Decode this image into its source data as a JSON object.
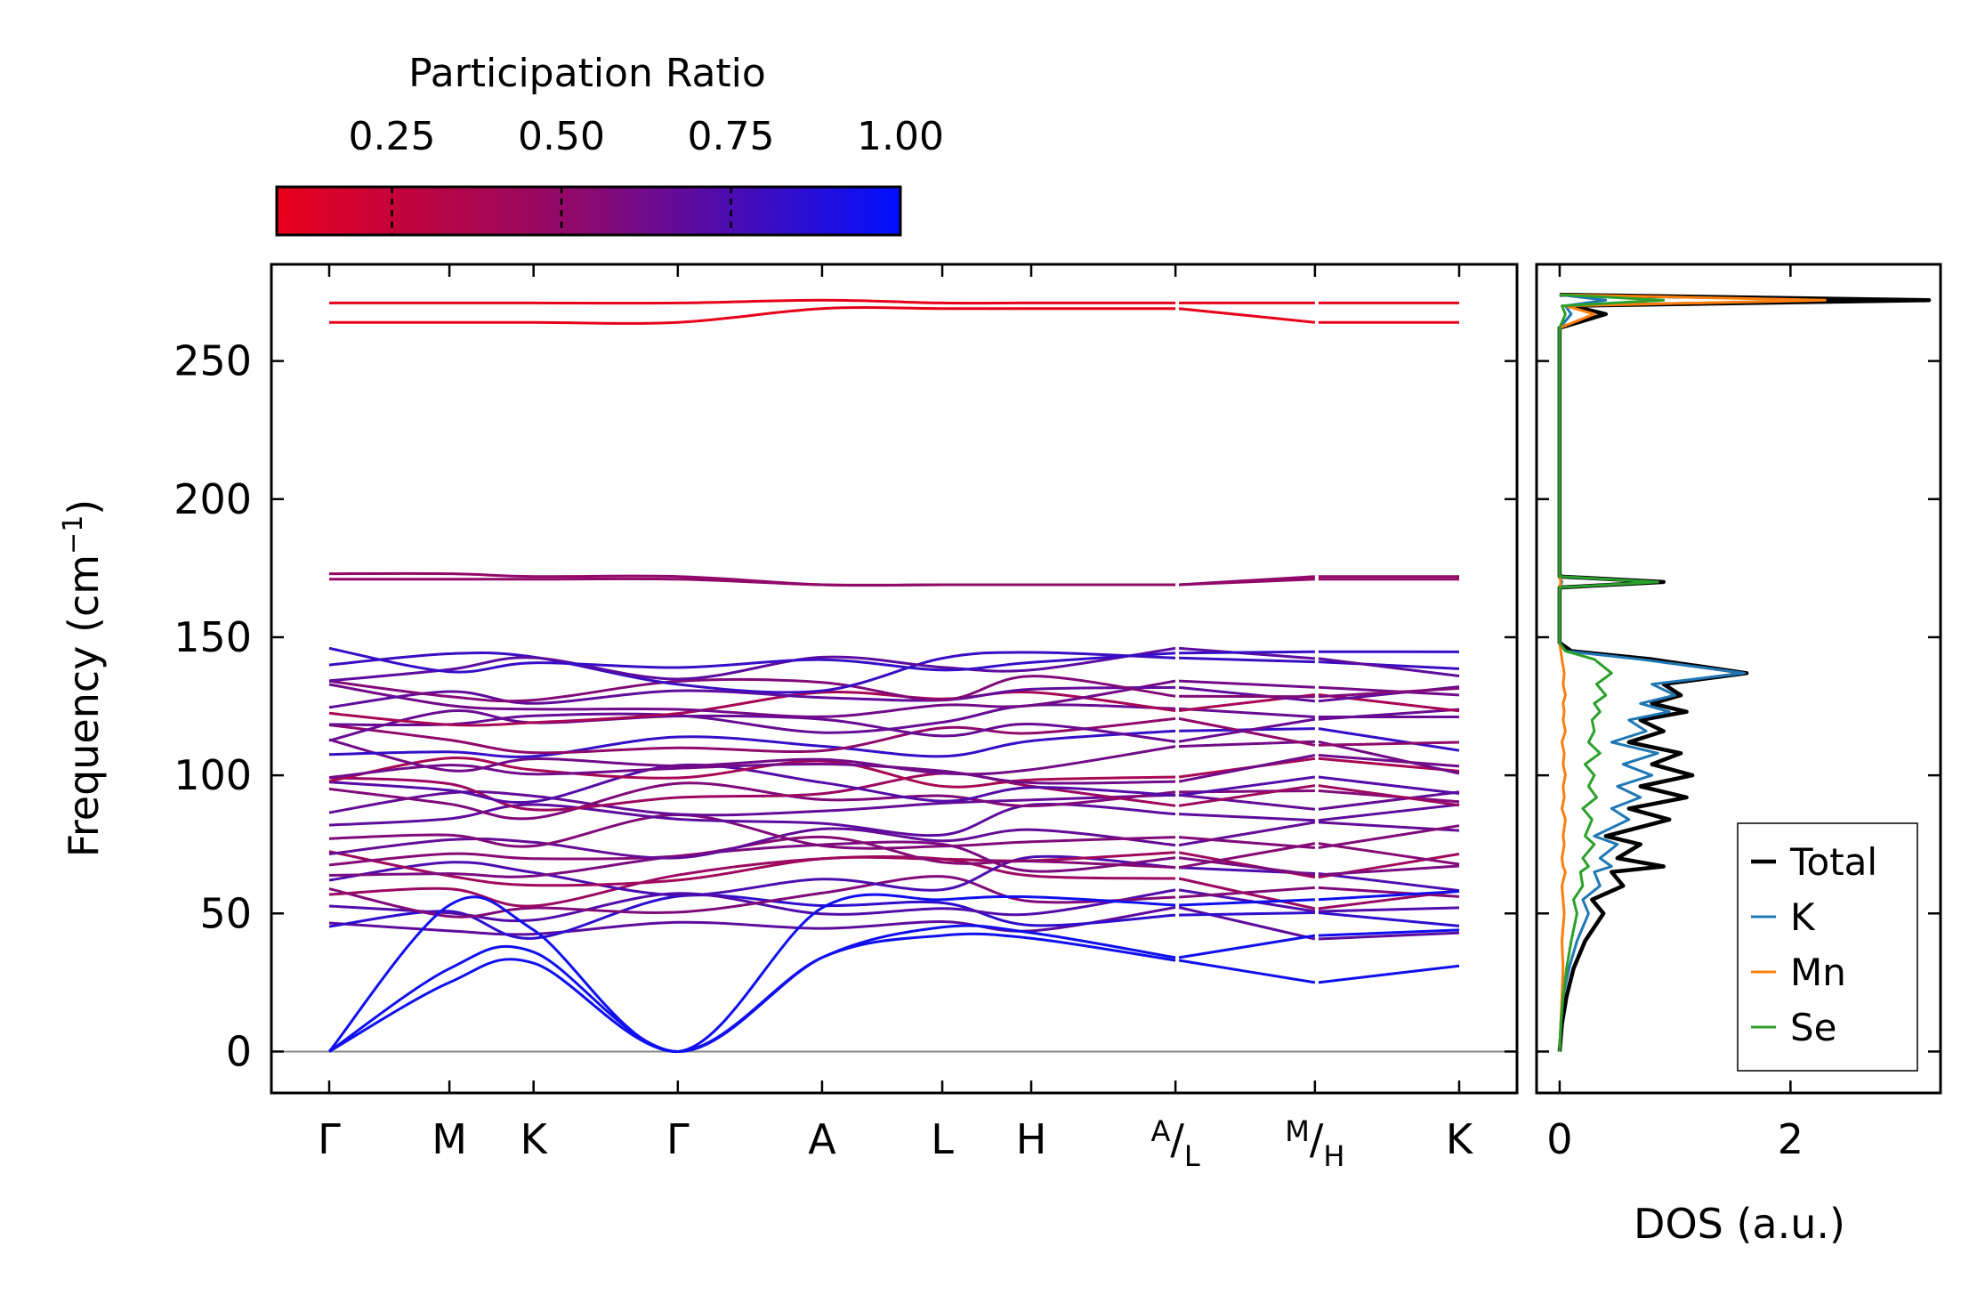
{
  "chart_data": [
    {
      "type": "line",
      "name": "phonon-band-structure",
      "ylabel": "Frequency (cm",
      "ylabel_sup": "−1",
      "ylabel_close": ")",
      "ylim": [
        -15,
        285
      ],
      "yticks": [
        0,
        50,
        100,
        150,
        200,
        250
      ],
      "ytick_labels": [
        "0",
        "50",
        "100",
        "150",
        "200",
        "250"
      ],
      "path": {
        "points": [
          "Γ",
          "M",
          "K",
          "Γ",
          "A",
          "L",
          "H",
          "A|L",
          "M|H",
          "K"
        ],
        "labels": [
          {
            "main": "Γ"
          },
          {
            "main": "M"
          },
          {
            "main": "K"
          },
          {
            "main": "Γ"
          },
          {
            "main": "A"
          },
          {
            "main": "L"
          },
          {
            "main": "H"
          },
          {
            "sup": "A",
            "slash": "/",
            "sub": "L"
          },
          {
            "sup": "M",
            "slash": "/",
            "sub": "H"
          },
          {
            "main": "K"
          }
        ],
        "positions": [
          0.0,
          0.5,
          0.85,
          1.45,
          2.05,
          2.55,
          2.92,
          3.52,
          4.1,
          4.7
        ],
        "breaks": [
          3.52,
          4.1
        ]
      },
      "flat_bands": [
        {
          "values": [
            271,
            271,
            271,
            271,
            272,
            271,
            271,
            271,
            271,
            271
          ],
          "pr": 0.05
        },
        {
          "values": [
            264,
            264,
            264,
            264,
            269,
            269,
            269,
            269,
            264,
            264
          ],
          "pr": 0.05
        },
        {
          "values": [
            173,
            173,
            172,
            172,
            169,
            169,
            169,
            169,
            172,
            172
          ],
          "pr": 0.5
        },
        {
          "values": [
            171,
            171,
            171,
            171,
            169,
            169,
            169,
            169,
            171,
            171
          ],
          "pr": 0.5
        }
      ],
      "acoustic_bands": [
        {
          "values": [
            0,
            53,
            44,
            0,
            52,
            55,
            56,
            53,
            55,
            58
          ],
          "pr": 0.95
        },
        {
          "values": [
            0,
            30,
            36,
            0,
            34,
            45,
            43,
            34,
            42,
            44
          ],
          "pr": 0.95
        },
        {
          "values": [
            0,
            25,
            32,
            0,
            34,
            42,
            41,
            33,
            25,
            31
          ],
          "pr": 0.95
        }
      ],
      "optical_region": {
        "min": 45,
        "max": 146,
        "count": 30
      },
      "zero_line": 0,
      "colorbar": {
        "title": "Participation Ratio",
        "ticks": [
          0.25,
          0.5,
          0.75,
          1.0
        ],
        "tick_labels": [
          "0.25",
          "0.50",
          "0.75",
          "1.00"
        ],
        "range": [
          0.08,
          1.0
        ],
        "color_low": "#e8001a",
        "color_mid": "#8a0a70",
        "color_high": "#0010ff"
      }
    },
    {
      "type": "line",
      "name": "phonon-dos",
      "xlabel": "DOS (a.u.)",
      "xlim": [
        -0.2,
        3.3
      ],
      "xticks": [
        0,
        2
      ],
      "xtick_labels": [
        "0",
        "2"
      ],
      "ylim": [
        -15,
        285
      ],
      "legend": {
        "position": "bottom-right",
        "entries": [
          "Total",
          "K",
          "Mn",
          "Se"
        ]
      },
      "series": [
        {
          "name": "Total",
          "color": "#000000",
          "x": [
            0,
            0.02,
            0.06,
            0.12,
            0.22,
            0.38,
            0.28,
            0.55,
            0.45,
            0.9,
            0.5,
            0.7,
            0.4,
            0.95,
            0.6,
            1.1,
            0.7,
            1.15,
            0.8,
            1.05,
            0.6,
            0.9,
            0.7,
            1.1,
            0.8,
            1.05,
            0.9,
            1.62,
            0.8,
            0.1,
            0,
            0,
            0.9,
            0,
            0,
            0,
            0.4,
            0.1,
            3.2,
            0
          ],
          "y": [
            0,
            10,
            20,
            30,
            40,
            50,
            55,
            60,
            65,
            67,
            70,
            75,
            78,
            84,
            88,
            92,
            96,
            100,
            104,
            108,
            112,
            116,
            120,
            123,
            126,
            129,
            133,
            137,
            142,
            145,
            148,
            168,
            170,
            172,
            175,
            262,
            267,
            270,
            272,
            274
          ]
        },
        {
          "name": "K",
          "color": "#1f77b4",
          "x": [
            0,
            0.01,
            0.03,
            0.08,
            0.15,
            0.25,
            0.2,
            0.35,
            0.3,
            0.45,
            0.35,
            0.5,
            0.3,
            0.6,
            0.45,
            0.7,
            0.5,
            0.8,
            0.55,
            0.85,
            0.45,
            0.75,
            0.6,
            0.95,
            0.7,
            1.0,
            0.8,
            1.6,
            0.7,
            0.05,
            0,
            0,
            0.02,
            0,
            0,
            0,
            0.1,
            0.05,
            0.4,
            0
          ],
          "y": [
            0,
            10,
            20,
            30,
            40,
            50,
            55,
            60,
            65,
            67,
            70,
            75,
            78,
            84,
            88,
            92,
            96,
            100,
            104,
            108,
            112,
            116,
            120,
            123,
            126,
            129,
            133,
            137,
            142,
            145,
            148,
            168,
            170,
            172,
            175,
            262,
            267,
            270,
            272,
            274
          ]
        },
        {
          "name": "Mn",
          "color": "#ff7f0e",
          "x": [
            0,
            0.01,
            0.02,
            0.03,
            0.02,
            0.04,
            0.03,
            0.02,
            0.05,
            0.03,
            0.02,
            0.04,
            0.03,
            0.05,
            0.02,
            0.04,
            0.03,
            0.05,
            0.03,
            0.04,
            0.02,
            0.05,
            0.03,
            0.04,
            0.03,
            0.05,
            0.03,
            0.04,
            0.02,
            0.01,
            0,
            0,
            0.01,
            0,
            0,
            0,
            0.3,
            0.05,
            2.3,
            0
          ],
          "y": [
            0,
            10,
            20,
            30,
            40,
            50,
            55,
            60,
            65,
            67,
            70,
            75,
            78,
            84,
            88,
            92,
            96,
            100,
            104,
            108,
            112,
            116,
            120,
            123,
            126,
            129,
            133,
            137,
            142,
            145,
            148,
            168,
            170,
            172,
            175,
            262,
            267,
            270,
            272,
            274
          ]
        },
        {
          "name": "Se",
          "color": "#2ca02c",
          "x": [
            0,
            0.01,
            0.03,
            0.06,
            0.1,
            0.15,
            0.12,
            0.2,
            0.18,
            0.25,
            0.2,
            0.3,
            0.22,
            0.28,
            0.2,
            0.32,
            0.25,
            0.3,
            0.22,
            0.35,
            0.25,
            0.3,
            0.28,
            0.35,
            0.3,
            0.4,
            0.32,
            0.45,
            0.3,
            0.05,
            0,
            0,
            0.85,
            0,
            0,
            0,
            0.05,
            0.02,
            0.9,
            0
          ],
          "y": [
            0,
            10,
            20,
            30,
            40,
            50,
            55,
            60,
            65,
            67,
            70,
            75,
            78,
            84,
            88,
            92,
            96,
            100,
            104,
            108,
            112,
            116,
            120,
            123,
            126,
            129,
            133,
            137,
            142,
            145,
            148,
            168,
            170,
            172,
            175,
            262,
            267,
            270,
            272,
            274
          ]
        }
      ]
    }
  ]
}
